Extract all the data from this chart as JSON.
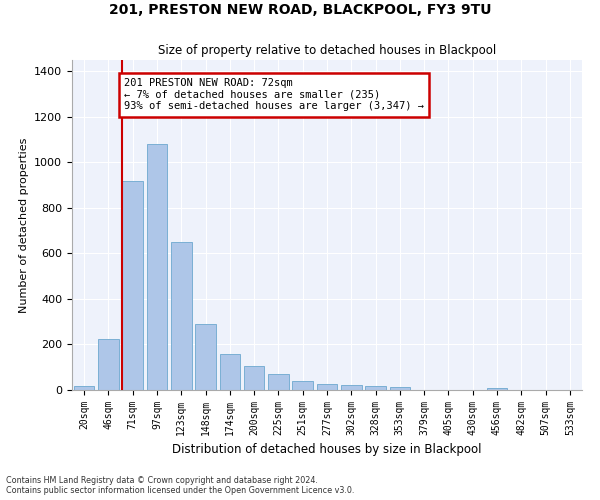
{
  "title": "201, PRESTON NEW ROAD, BLACKPOOL, FY3 9TU",
  "subtitle": "Size of property relative to detached houses in Blackpool",
  "xlabel": "Distribution of detached houses by size in Blackpool",
  "ylabel": "Number of detached properties",
  "categories": [
    "20sqm",
    "46sqm",
    "71sqm",
    "97sqm",
    "123sqm",
    "148sqm",
    "174sqm",
    "200sqm",
    "225sqm",
    "251sqm",
    "277sqm",
    "302sqm",
    "328sqm",
    "353sqm",
    "379sqm",
    "405sqm",
    "430sqm",
    "456sqm",
    "482sqm",
    "507sqm",
    "533sqm"
  ],
  "values": [
    18,
    225,
    920,
    1080,
    650,
    290,
    160,
    107,
    70,
    38,
    27,
    20,
    18,
    12,
    0,
    0,
    0,
    10,
    0,
    0,
    0
  ],
  "bar_color": "#aec6e8",
  "bar_edge_color": "#7aafd4",
  "red_line_x": 2,
  "annotation_text": "201 PRESTON NEW ROAD: 72sqm\n← 7% of detached houses are smaller (235)\n93% of semi-detached houses are larger (3,347) →",
  "annotation_box_color": "#ffffff",
  "annotation_box_edge_color": "#cc0000",
  "ylim": [
    0,
    1450
  ],
  "background_color": "#eef2fb",
  "grid_color": "#ffffff",
  "yticks": [
    0,
    200,
    400,
    600,
    800,
    1000,
    1200,
    1400
  ],
  "footer_line1": "Contains HM Land Registry data © Crown copyright and database right 2024.",
  "footer_line2": "Contains public sector information licensed under the Open Government Licence v3.0."
}
